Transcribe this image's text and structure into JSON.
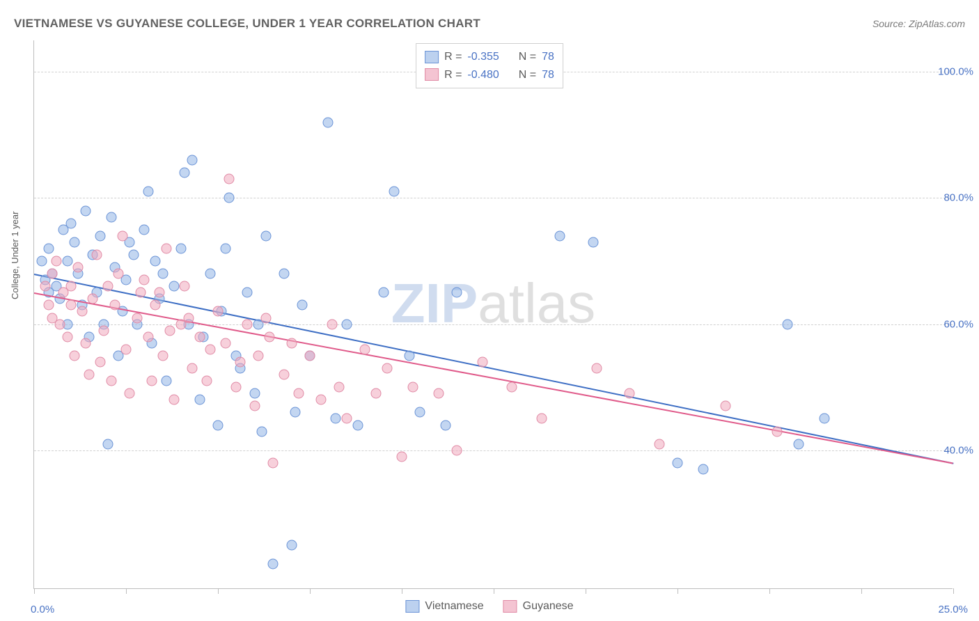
{
  "header": {
    "title": "VIETNAMESE VS GUYANESE COLLEGE, UNDER 1 YEAR CORRELATION CHART",
    "source": "Source: ZipAtlas.com"
  },
  "watermark": {
    "part1": "ZIP",
    "part2": "atlas"
  },
  "chart": {
    "type": "scatter",
    "ylabel": "College, Under 1 year",
    "xlim": [
      0,
      25
    ],
    "ylim": [
      18,
      105
    ],
    "background_color": "#ffffff",
    "grid_color": "#d0d0d0",
    "axis_color": "#bdbdbd",
    "yticks": [
      {
        "value": 40,
        "label": "40.0%"
      },
      {
        "value": 60,
        "label": "60.0%"
      },
      {
        "value": 80,
        "label": "80.0%"
      },
      {
        "value": 100,
        "label": "100.0%"
      }
    ],
    "xtick_positions": [
      0,
      2.5,
      5,
      7.5,
      10,
      12.5,
      15,
      17.5,
      20,
      22.5,
      25
    ],
    "xtick_labels": {
      "min": "0.0%",
      "max": "25.0%"
    },
    "label_color": "#4972c4",
    "label_fontsize": 15,
    "ylabel_fontsize": 13,
    "ylabel_color": "#5a5a5a",
    "series": [
      {
        "name": "Vietnamese",
        "marker_fill": "rgba(146,180,230,0.55)",
        "marker_stroke": "#6a93d6",
        "line_color": "#3d6ec4",
        "regression": {
          "x1": 0,
          "y1": 68,
          "x2": 25,
          "y2": 38
        },
        "R": "-0.355",
        "N": "78",
        "swatch_fill": "#bcd1ef",
        "swatch_border": "#6a93d6",
        "points": [
          [
            0.2,
            70
          ],
          [
            0.3,
            67
          ],
          [
            0.4,
            65
          ],
          [
            0.4,
            72
          ],
          [
            0.5,
            68
          ],
          [
            0.6,
            66
          ],
          [
            0.7,
            64
          ],
          [
            0.8,
            75
          ],
          [
            0.9,
            70
          ],
          [
            0.9,
            60
          ],
          [
            1.0,
            76
          ],
          [
            1.1,
            73
          ],
          [
            1.2,
            68
          ],
          [
            1.3,
            63
          ],
          [
            1.4,
            78
          ],
          [
            1.5,
            58
          ],
          [
            1.6,
            71
          ],
          [
            1.7,
            65
          ],
          [
            1.8,
            74
          ],
          [
            1.9,
            60
          ],
          [
            2.0,
            41
          ],
          [
            2.1,
            77
          ],
          [
            2.2,
            69
          ],
          [
            2.3,
            55
          ],
          [
            2.4,
            62
          ],
          [
            2.5,
            67
          ],
          [
            2.6,
            73
          ],
          [
            2.8,
            60
          ],
          [
            3.0,
            75
          ],
          [
            3.1,
            81
          ],
          [
            3.2,
            57
          ],
          [
            3.3,
            70
          ],
          [
            3.4,
            64
          ],
          [
            3.6,
            51
          ],
          [
            3.8,
            66
          ],
          [
            4.0,
            72
          ],
          [
            4.1,
            84
          ],
          [
            4.2,
            60
          ],
          [
            4.3,
            86
          ],
          [
            4.5,
            48
          ],
          [
            4.8,
            68
          ],
          [
            5.0,
            44
          ],
          [
            5.1,
            62
          ],
          [
            5.2,
            72
          ],
          [
            5.3,
            80
          ],
          [
            5.5,
            55
          ],
          [
            5.8,
            65
          ],
          [
            6.0,
            49
          ],
          [
            6.1,
            60
          ],
          [
            6.2,
            43
          ],
          [
            6.3,
            74
          ],
          [
            6.5,
            22
          ],
          [
            6.8,
            68
          ],
          [
            7.0,
            25
          ],
          [
            7.1,
            46
          ],
          [
            7.3,
            63
          ],
          [
            7.5,
            55
          ],
          [
            8.0,
            92
          ],
          [
            8.2,
            45
          ],
          [
            8.5,
            60
          ],
          [
            8.8,
            44
          ],
          [
            9.5,
            65
          ],
          [
            9.8,
            81
          ],
          [
            10.2,
            55
          ],
          [
            10.5,
            46
          ],
          [
            11.2,
            44
          ],
          [
            11.5,
            65
          ],
          [
            14.3,
            74
          ],
          [
            15.2,
            73
          ],
          [
            17.5,
            38
          ],
          [
            18.2,
            37
          ],
          [
            20.5,
            60
          ],
          [
            20.8,
            41
          ],
          [
            21.5,
            45
          ],
          [
            2.7,
            71
          ],
          [
            3.5,
            68
          ],
          [
            4.6,
            58
          ],
          [
            5.6,
            53
          ]
        ]
      },
      {
        "name": "Guyanese",
        "marker_fill": "rgba(240,170,190,0.55)",
        "marker_stroke": "#e08aa5",
        "line_color": "#e05a8a",
        "regression": {
          "x1": 0,
          "y1": 65,
          "x2": 25,
          "y2": 38
        },
        "R": "-0.480",
        "N": "78",
        "swatch_fill": "#f4c4d2",
        "swatch_border": "#e08aa5",
        "points": [
          [
            0.3,
            66
          ],
          [
            0.4,
            63
          ],
          [
            0.5,
            68
          ],
          [
            0.6,
            70
          ],
          [
            0.7,
            60
          ],
          [
            0.8,
            65
          ],
          [
            0.9,
            58
          ],
          [
            1.0,
            66
          ],
          [
            1.1,
            55
          ],
          [
            1.2,
            69
          ],
          [
            1.3,
            62
          ],
          [
            1.4,
            57
          ],
          [
            1.5,
            52
          ],
          [
            1.6,
            64
          ],
          [
            1.7,
            71
          ],
          [
            1.8,
            54
          ],
          [
            1.9,
            59
          ],
          [
            2.0,
            66
          ],
          [
            2.1,
            51
          ],
          [
            2.2,
            63
          ],
          [
            2.3,
            68
          ],
          [
            2.4,
            74
          ],
          [
            2.5,
            56
          ],
          [
            2.6,
            49
          ],
          [
            2.8,
            61
          ],
          [
            3.0,
            67
          ],
          [
            3.1,
            58
          ],
          [
            3.2,
            51
          ],
          [
            3.3,
            63
          ],
          [
            3.5,
            55
          ],
          [
            3.6,
            72
          ],
          [
            3.8,
            48
          ],
          [
            4.0,
            60
          ],
          [
            4.1,
            66
          ],
          [
            4.3,
            53
          ],
          [
            4.5,
            58
          ],
          [
            4.7,
            51
          ],
          [
            5.0,
            62
          ],
          [
            5.2,
            57
          ],
          [
            5.3,
            83
          ],
          [
            5.5,
            50
          ],
          [
            5.8,
            60
          ],
          [
            6.0,
            47
          ],
          [
            6.1,
            55
          ],
          [
            6.3,
            61
          ],
          [
            6.5,
            38
          ],
          [
            6.8,
            52
          ],
          [
            7.0,
            57
          ],
          [
            7.2,
            49
          ],
          [
            7.5,
            55
          ],
          [
            7.8,
            48
          ],
          [
            8.1,
            60
          ],
          [
            8.3,
            50
          ],
          [
            8.5,
            45
          ],
          [
            9.0,
            56
          ],
          [
            9.3,
            49
          ],
          [
            9.6,
            53
          ],
          [
            10.0,
            39
          ],
          [
            10.3,
            50
          ],
          [
            11.0,
            49
          ],
          [
            11.5,
            40
          ],
          [
            12.2,
            54
          ],
          [
            13.0,
            50
          ],
          [
            13.8,
            45
          ],
          [
            15.3,
            53
          ],
          [
            16.2,
            49
          ],
          [
            17.0,
            41
          ],
          [
            18.8,
            47
          ],
          [
            20.2,
            43
          ],
          [
            3.4,
            65
          ],
          [
            4.2,
            61
          ],
          [
            4.8,
            56
          ],
          [
            5.6,
            54
          ],
          [
            6.4,
            58
          ],
          [
            2.9,
            65
          ],
          [
            1.0,
            63
          ],
          [
            0.5,
            61
          ],
          [
            3.7,
            59
          ]
        ]
      }
    ],
    "legend_top": {
      "R_label": "R =",
      "N_label": "N ="
    }
  }
}
